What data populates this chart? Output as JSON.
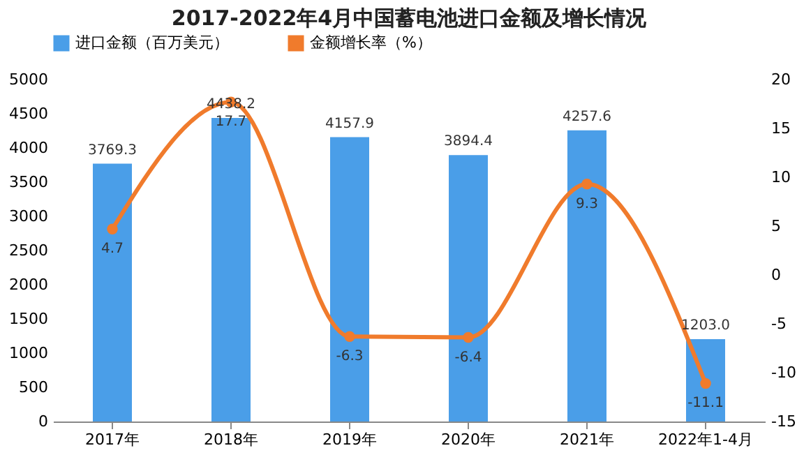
{
  "chart_data": {
    "type": "bar",
    "title": "2017-2022年4月中国蓄电池进口金额及增长情况",
    "categories": [
      "2017年",
      "2018年",
      "2019年",
      "2020年",
      "2021年",
      "2022年1-4月"
    ],
    "series": [
      {
        "name": "进口金额（百万美元）",
        "color": "#4a9ee8",
        "values": [
          3769.3,
          4438.2,
          4157.9,
          3894.4,
          4257.6,
          1203.0
        ],
        "value_labels": [
          "3769.3",
          "4438.2",
          "4157.9",
          "3894.4",
          "4257.6",
          "1203.0"
        ]
      },
      {
        "name": "金额增长率（%）",
        "type": "line",
        "axis": "y2",
        "color": "#f07b2c",
        "values": [
          4.7,
          17.7,
          -6.3,
          -6.4,
          9.3,
          -11.1
        ],
        "value_labels": [
          "4.7",
          "17.7",
          "-6.3",
          "-6.4",
          "9.3",
          "-11.1"
        ],
        "marker": "circle",
        "line_style": "solid"
      }
    ],
    "ylim": [
      0,
      5000
    ],
    "yticks": [
      0,
      500,
      1000,
      1500,
      2000,
      2500,
      3000,
      3500,
      4000,
      4500,
      5000
    ],
    "y2lim": [
      -15,
      20
    ],
    "y2ticks": [
      -15,
      -10,
      -5,
      0,
      5,
      10,
      15,
      20
    ],
    "grid": false,
    "legend": "top"
  }
}
